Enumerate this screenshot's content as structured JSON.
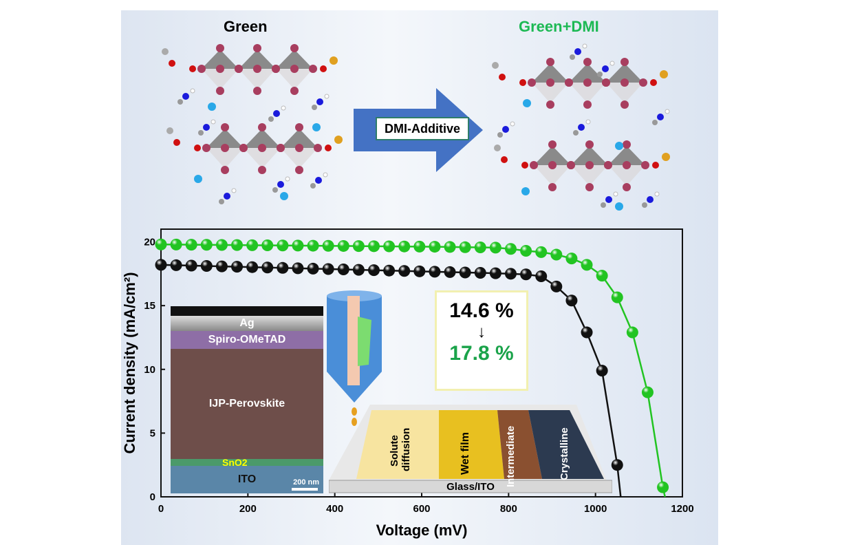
{
  "top": {
    "left_title": "Green",
    "right_title": "Green+DMI",
    "arrow_label": "DMI-Additive",
    "colors": {
      "green_title": "#1db954",
      "arrow": "#4472c4",
      "pb": "#a83e5f",
      "oxygen": "#d01010",
      "nitrogen": "#1a1adc",
      "cs": "#29a8e8",
      "sulfur": "#e0a020"
    }
  },
  "insets": {
    "sem_layers": [
      "Ag",
      "Spiro-OMeTAD",
      "IJP-Perovskite",
      "SnO2",
      "ITO"
    ],
    "scale_bar": "200 nm",
    "efficiency_before": "14.6 %",
    "efficiency_arrow": "↓",
    "efficiency_after": "17.8 %",
    "film_stages": [
      "Solute diffusion",
      "Wet film",
      "Intermediate",
      "Crystalline"
    ],
    "substrate": "Glass/ITO",
    "nozzle_icon": "inkjet-nozzle-icon"
  },
  "chart_data": {
    "type": "line",
    "xlabel": "Voltage (mV)",
    "ylabel": "Current density (mA/cm²)",
    "xlim": [
      0,
      1200
    ],
    "ylim": [
      0,
      21
    ],
    "xticks": [
      "0",
      "200",
      "400",
      "600",
      "800",
      "1000",
      "1200"
    ],
    "yticks": [
      "0",
      "5",
      "10",
      "15",
      "20"
    ],
    "grid": false,
    "series": [
      {
        "color": "#22c422",
        "voc": 1160,
        "x": [
          0,
          35,
          70,
          105,
          140,
          175,
          210,
          245,
          280,
          315,
          350,
          385,
          420,
          455,
          490,
          525,
          560,
          595,
          630,
          665,
          700,
          735,
          770,
          805,
          840,
          875,
          910,
          945,
          980,
          1015,
          1050,
          1085,
          1120,
          1155
        ],
        "values": [
          19.8,
          19.79,
          19.78,
          19.77,
          19.76,
          19.75,
          19.74,
          19.73,
          19.72,
          19.71,
          19.7,
          19.69,
          19.68,
          19.67,
          19.66,
          19.65,
          19.64,
          19.63,
          19.62,
          19.6,
          19.58,
          19.57,
          19.55,
          19.45,
          19.3,
          19.2,
          19.0,
          18.7,
          18.2,
          17.35,
          15.65,
          12.9,
          8.2,
          0.75
        ]
      },
      {
        "color": "#111111",
        "voc": 1058,
        "x": [
          0,
          35,
          70,
          105,
          140,
          175,
          210,
          245,
          280,
          315,
          350,
          385,
          420,
          455,
          490,
          525,
          560,
          595,
          630,
          665,
          700,
          735,
          770,
          805,
          840,
          875,
          910,
          945,
          980,
          1015,
          1050
        ],
        "values": [
          18.2,
          18.17,
          18.14,
          18.11,
          18.08,
          18.05,
          18.02,
          17.99,
          17.96,
          17.93,
          17.9,
          17.87,
          17.84,
          17.81,
          17.78,
          17.75,
          17.72,
          17.69,
          17.66,
          17.63,
          17.6,
          17.57,
          17.54,
          17.5,
          17.45,
          17.3,
          16.5,
          15.4,
          12.9,
          9.9,
          2.5
        ]
      }
    ]
  }
}
